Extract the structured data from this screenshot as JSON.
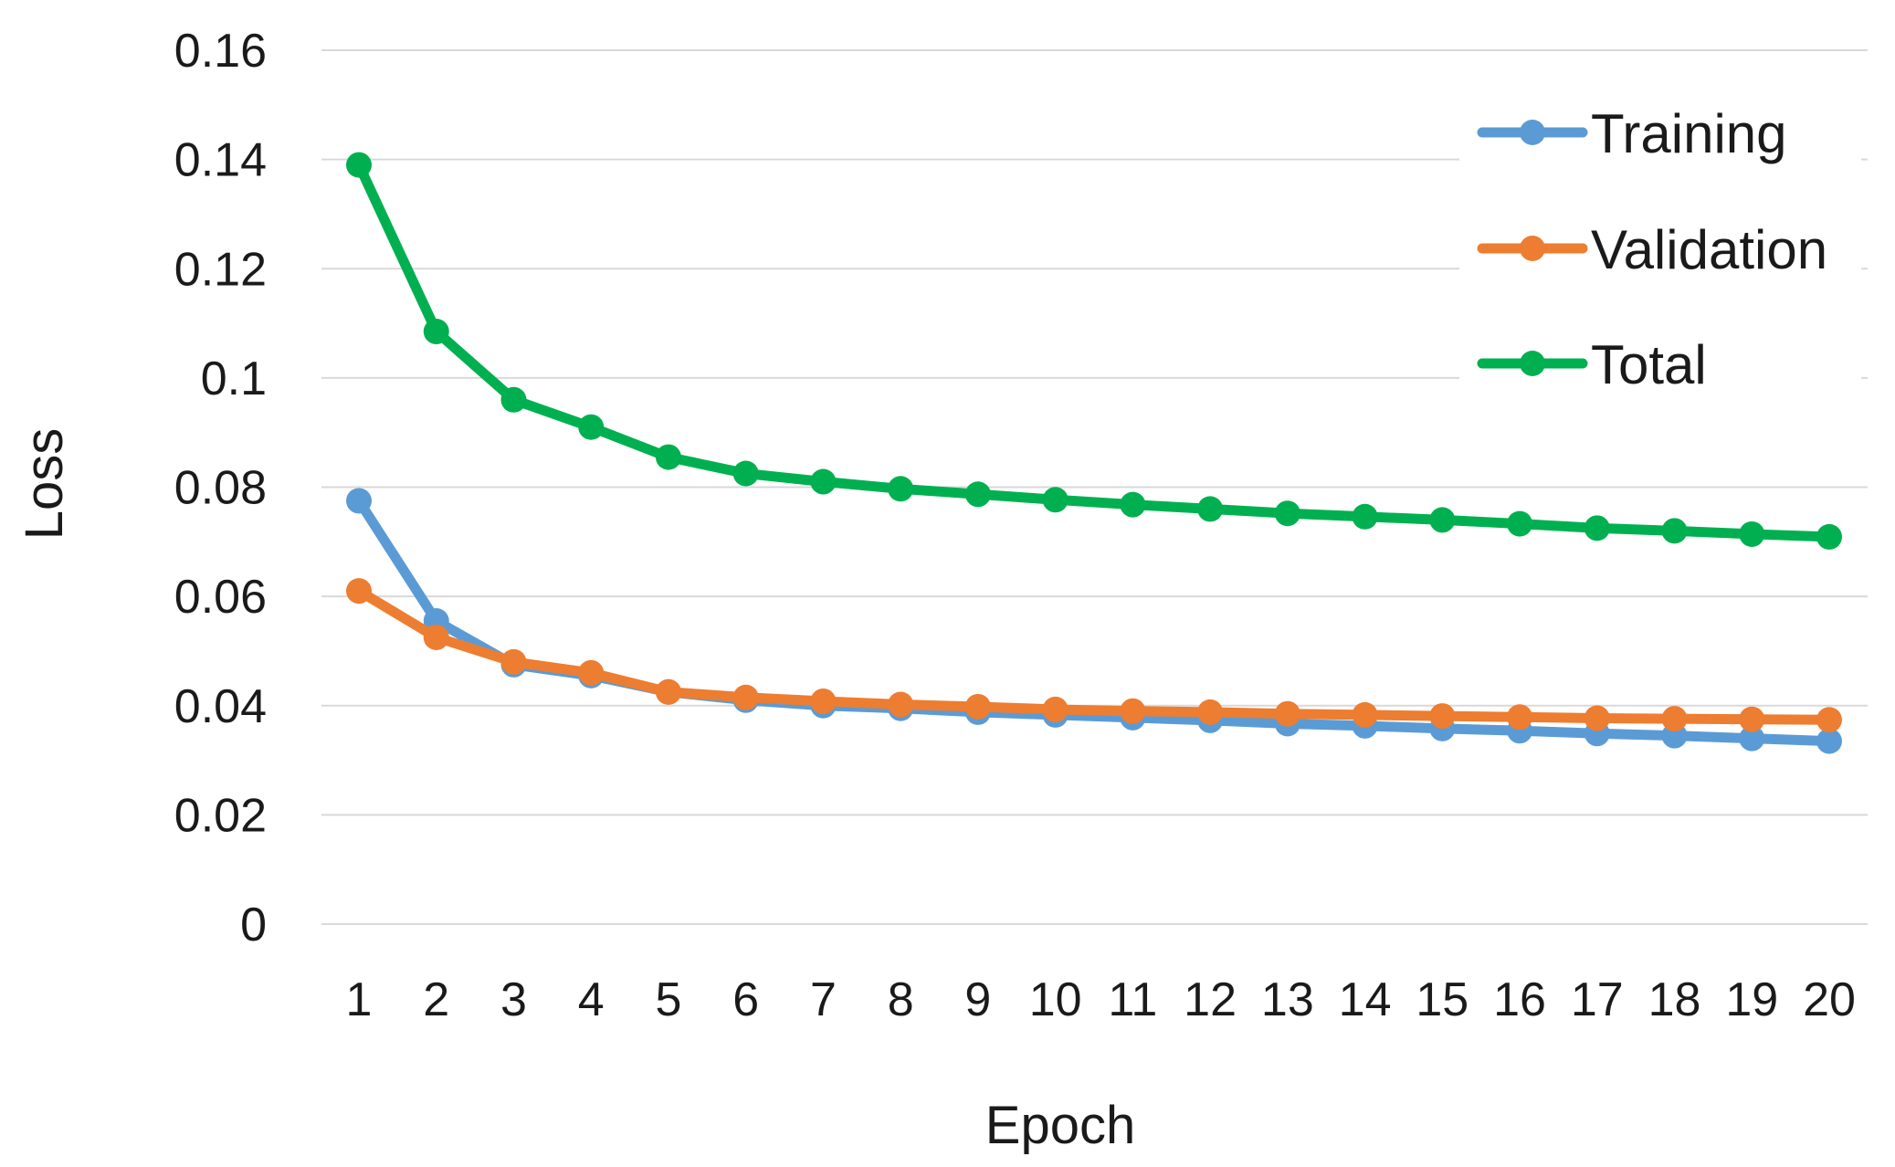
{
  "chart_data": {
    "type": "line",
    "title": "",
    "xlabel": "Epoch",
    "ylabel": "Loss",
    "categories": [
      "1",
      "2",
      "3",
      "4",
      "5",
      "6",
      "7",
      "8",
      "9",
      "10",
      "11",
      "12",
      "13",
      "14",
      "15",
      "16",
      "17",
      "18",
      "19",
      "20"
    ],
    "ylim": [
      0,
      0.16
    ],
    "yticks": [
      0,
      0.02,
      0.04,
      0.06,
      0.08,
      0.1,
      0.12,
      0.14,
      0.16
    ],
    "ytick_labels": [
      "0",
      "0.02",
      "0.04",
      "0.06",
      "0.08",
      "0.1",
      "0.12",
      "0.14",
      "0.16"
    ],
    "grid": true,
    "legend_position": "top-right",
    "series": [
      {
        "name": "Training",
        "color": "#5b9bd5",
        "values": [
          0.0775,
          0.0555,
          0.0475,
          0.0455,
          0.0425,
          0.041,
          0.04,
          0.0395,
          0.0388,
          0.0383,
          0.0378,
          0.0373,
          0.0367,
          0.0363,
          0.0358,
          0.0354,
          0.0349,
          0.0345,
          0.034,
          0.0335
        ]
      },
      {
        "name": "Validation",
        "color": "#ed7d31",
        "values": [
          0.061,
          0.0525,
          0.048,
          0.046,
          0.0425,
          0.0415,
          0.0408,
          0.0402,
          0.0398,
          0.0393,
          0.039,
          0.0388,
          0.0385,
          0.0383,
          0.0381,
          0.0379,
          0.0377,
          0.0376,
          0.0375,
          0.0374
        ]
      },
      {
        "name": "Total",
        "color": "#00b050",
        "values": [
          0.139,
          0.1085,
          0.096,
          0.091,
          0.0855,
          0.0825,
          0.081,
          0.0797,
          0.0787,
          0.0777,
          0.0768,
          0.076,
          0.0752,
          0.0746,
          0.074,
          0.0733,
          0.0725,
          0.072,
          0.0714,
          0.0709
        ]
      }
    ]
  }
}
